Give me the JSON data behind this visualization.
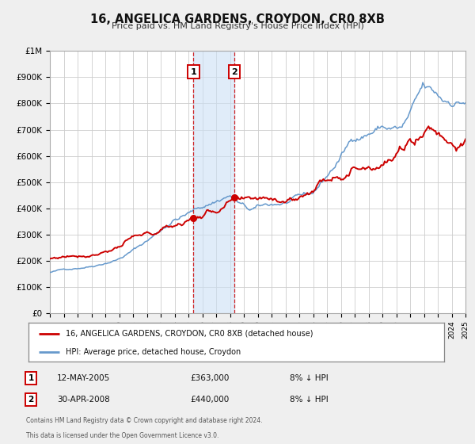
{
  "title": "16, ANGELICA GARDENS, CROYDON, CR0 8XB",
  "subtitle": "Price paid vs. HM Land Registry's House Price Index (HPI)",
  "legend_label_red": "16, ANGELICA GARDENS, CROYDON, CR0 8XB (detached house)",
  "legend_label_blue": "HPI: Average price, detached house, Croydon",
  "marker1_date": "12-MAY-2005",
  "marker1_value": 363000,
  "marker1_hpi": "8% ↓ HPI",
  "marker2_date": "30-APR-2008",
  "marker2_value": 440000,
  "marker2_hpi": "8% ↓ HPI",
  "footer_line1": "Contains HM Land Registry data © Crown copyright and database right 2024.",
  "footer_line2": "This data is licensed under the Open Government Licence v3.0.",
  "color_red": "#cc0000",
  "color_blue": "#6699cc",
  "color_bg": "#efefef",
  "color_plot_bg": "#ffffff",
  "color_grid": "#cccccc",
  "ylim": [
    0,
    1000000
  ],
  "yticks": [
    0,
    100000,
    200000,
    300000,
    400000,
    500000,
    600000,
    700000,
    800000,
    900000,
    1000000
  ],
  "ytick_labels": [
    "£0",
    "£100K",
    "£200K",
    "£300K",
    "£400K",
    "£500K",
    "£600K",
    "£700K",
    "£800K",
    "£900K",
    "£1M"
  ],
  "xmin": 1995,
  "xmax": 2025,
  "marker1_x": 2005.36,
  "marker2_x": 2008.33,
  "shade_color": "#cce0f5"
}
